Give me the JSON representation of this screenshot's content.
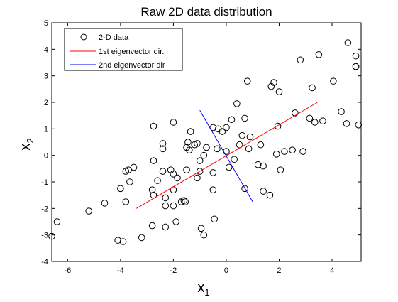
{
  "chart_data": {
    "type": "scatter",
    "title": "Raw 2D data distribution",
    "xlabel": "x",
    "xlabel_sub": "1",
    "ylabel": "x",
    "ylabel_sub": "2",
    "xlim": [
      -6.6,
      5.1
    ],
    "ylim": [
      -4,
      5
    ],
    "xticks": [
      -6,
      -4,
      -2,
      0,
      2,
      4
    ],
    "yticks": [
      -4,
      -3,
      -2,
      -1,
      0,
      1,
      2,
      3,
      4,
      5
    ],
    "grid": false,
    "legend_position": "top-left",
    "legend": [
      {
        "label": "2-D data",
        "marker": "circle",
        "color": "#000000"
      },
      {
        "label": "1st eigenvector dir.",
        "marker": "line",
        "color": "#ff0000"
      },
      {
        "label": "2nd eigenvector dir",
        "marker": "line",
        "color": "#0000ff"
      }
    ],
    "series": [
      {
        "name": "2-D data",
        "kind": "scatter",
        "color": "#000000",
        "points": [
          [
            -6.6,
            -3.05
          ],
          [
            -6.4,
            -2.5
          ],
          [
            -5.2,
            -2.1
          ],
          [
            -4.6,
            -1.8
          ],
          [
            -4.1,
            -3.2
          ],
          [
            -3.9,
            -3.25
          ],
          [
            -4.0,
            -1.25
          ],
          [
            -3.8,
            -1.75
          ],
          [
            -3.8,
            -0.6
          ],
          [
            -3.7,
            -0.55
          ],
          [
            -3.5,
            -0.45
          ],
          [
            -3.65,
            -1.0
          ],
          [
            -3.2,
            -3.1
          ],
          [
            -2.8,
            -2.65
          ],
          [
            -2.8,
            -1.3
          ],
          [
            -2.75,
            -1.5
          ],
          [
            -2.75,
            -0.2
          ],
          [
            -2.75,
            1.1
          ],
          [
            -2.6,
            -0.95
          ],
          [
            -2.4,
            -0.6
          ],
          [
            -2.4,
            0.25
          ],
          [
            -2.4,
            0.45
          ],
          [
            -2.3,
            -1.6
          ],
          [
            -2.3,
            -1.9
          ],
          [
            -2.3,
            -2.7
          ],
          [
            -2.1,
            -0.55
          ],
          [
            -2.0,
            -0.7
          ],
          [
            -2.0,
            -1.3
          ],
          [
            -2.0,
            -1.9
          ],
          [
            -2.0,
            1.25
          ],
          [
            -1.9,
            -2.5
          ],
          [
            -1.85,
            -0.85
          ],
          [
            -1.7,
            -1.75
          ],
          [
            -1.6,
            -1.7
          ],
          [
            -1.55,
            -1.75
          ],
          [
            -1.5,
            -0.55
          ],
          [
            -1.5,
            0.3
          ],
          [
            -1.45,
            0.5
          ],
          [
            -1.4,
            0.2
          ],
          [
            -1.35,
            0.9
          ],
          [
            -1.2,
            0.4
          ],
          [
            -1.1,
            0.45
          ],
          [
            -1.1,
            -0.85
          ],
          [
            -1.0,
            -0.2
          ],
          [
            -1.0,
            -0.6
          ],
          [
            -0.95,
            -2.75
          ],
          [
            -0.85,
            0.0
          ],
          [
            -0.85,
            -3.0
          ],
          [
            -0.75,
            0.3
          ],
          [
            -0.5,
            -1.3
          ],
          [
            -0.5,
            -0.65
          ],
          [
            -0.5,
            1.05
          ],
          [
            -0.45,
            -2.4
          ],
          [
            -0.35,
            0.25
          ],
          [
            -0.3,
            1.0
          ],
          [
            -0.15,
            0.9
          ],
          [
            0.0,
            0.15
          ],
          [
            0.0,
            1.05
          ],
          [
            0.1,
            -0.45
          ],
          [
            0.2,
            1.35
          ],
          [
            0.3,
            -0.15
          ],
          [
            0.4,
            1.95
          ],
          [
            0.5,
            0.4
          ],
          [
            0.6,
            0.75
          ],
          [
            0.7,
            -1.25
          ],
          [
            0.7,
            1.4
          ],
          [
            0.8,
            2.8
          ],
          [
            0.85,
            0.25
          ],
          [
            0.9,
            0.7
          ],
          [
            1.2,
            -0.35
          ],
          [
            1.3,
            0.4
          ],
          [
            1.4,
            -0.4
          ],
          [
            1.4,
            -1.35
          ],
          [
            1.65,
            -1.5
          ],
          [
            1.7,
            2.6
          ],
          [
            1.8,
            2.75
          ],
          [
            1.9,
            0.05
          ],
          [
            1.95,
            1.1
          ],
          [
            2.0,
            2.4
          ],
          [
            2.05,
            -0.55
          ],
          [
            2.2,
            0.15
          ],
          [
            2.5,
            0.2
          ],
          [
            2.6,
            1.6
          ],
          [
            2.8,
            3.6
          ],
          [
            2.9,
            0.15
          ],
          [
            3.15,
            1.4
          ],
          [
            3.25,
            2.55
          ],
          [
            3.35,
            1.25
          ],
          [
            3.5,
            3.8
          ],
          [
            3.65,
            1.3
          ],
          [
            4.05,
            2.8
          ],
          [
            4.35,
            1.65
          ],
          [
            4.55,
            1.2
          ],
          [
            4.6,
            4.25
          ],
          [
            4.9,
            3.75
          ],
          [
            4.9,
            3.35
          ],
          [
            4.9,
            3.35
          ],
          [
            5.0,
            1.15
          ]
        ]
      },
      {
        "name": "1st eigenvector dir.",
        "kind": "line",
        "color": "#ff0000",
        "points": [
          [
            -3.4,
            -2.0
          ],
          [
            3.45,
            2.0
          ]
        ]
      },
      {
        "name": "2nd eigenvector dir",
        "kind": "line",
        "color": "#0000ff",
        "points": [
          [
            -1.0,
            1.7
          ],
          [
            1.0,
            -1.75
          ]
        ]
      }
    ]
  }
}
